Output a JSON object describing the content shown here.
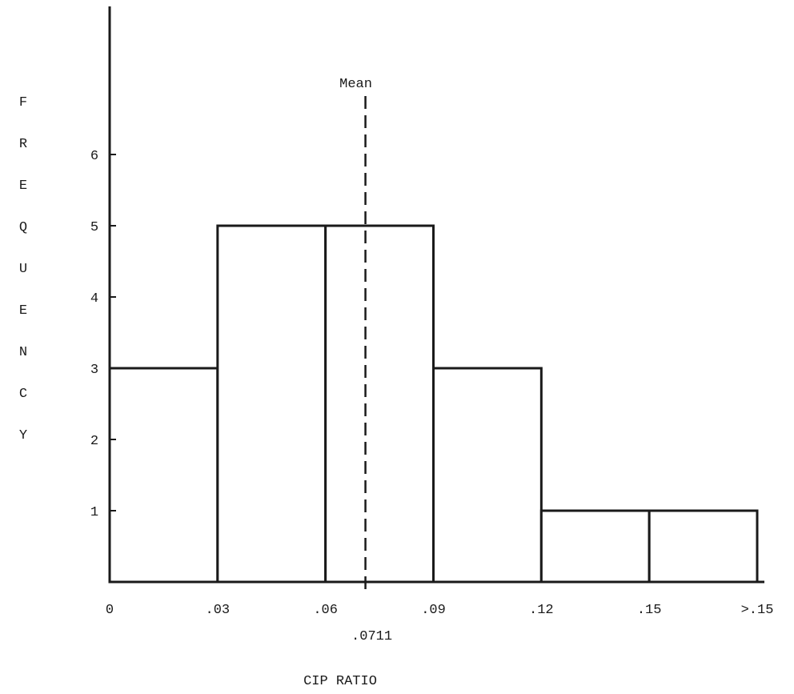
{
  "chart_data": {
    "type": "bar",
    "title": "",
    "xlabel": "CIP RATIO",
    "ylabel": "FREQUENCY",
    "x_tick_labels": [
      "0",
      ".03",
      ".06",
      ".09",
      ".12",
      ".15",
      ">.15"
    ],
    "bins": [
      {
        "start": 0.0,
        "end": 0.03,
        "frequency": 3
      },
      {
        "start": 0.03,
        "end": 0.06,
        "frequency": 5
      },
      {
        "start": 0.06,
        "end": 0.09,
        "frequency": 5
      },
      {
        "start": 0.09,
        "end": 0.12,
        "frequency": 3
      },
      {
        "start": 0.12,
        "end": 0.15,
        "frequency": 1
      },
      {
        "start": 0.15,
        "end": 0.18,
        "frequency": 1
      }
    ],
    "y_ticks": [
      1,
      2,
      3,
      4,
      5,
      6
    ],
    "ylim": [
      0,
      7
    ],
    "xlim": [
      0,
      0.18
    ],
    "mean": {
      "label": "Mean",
      "value": 0.0711,
      "value_label": ".0711"
    },
    "grid": false,
    "bar_fill": "#ffffff",
    "line_color": "#1a1a1a"
  }
}
